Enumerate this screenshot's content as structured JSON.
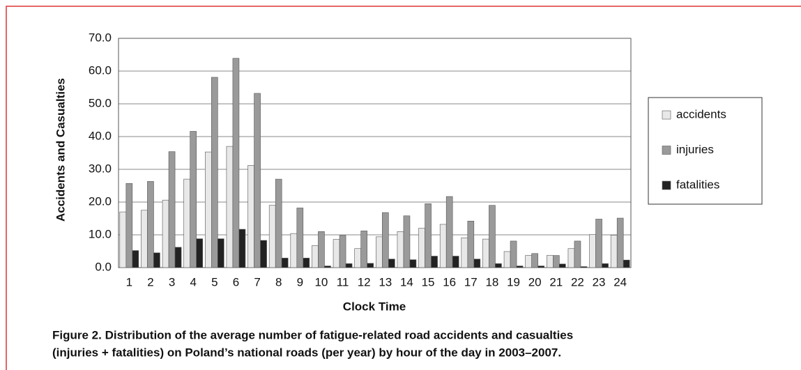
{
  "chart_data": {
    "type": "bar",
    "y_label": "Accidents and Casualties",
    "x_label": "Clock Time",
    "caption": [
      "Figure 2. Distribution of the average number of fatigue-related road accidents and casualties",
      "(injuries + fatalities) on Poland’s national roads (per year) by hour of the day in 2003–2007."
    ],
    "categories": [
      "1",
      "2",
      "3",
      "4",
      "5",
      "6",
      "7",
      "8",
      "9",
      "10",
      "11",
      "12",
      "13",
      "14",
      "15",
      "16",
      "17",
      "18",
      "19",
      "20",
      "21",
      "22",
      "23",
      "24"
    ],
    "series": [
      {
        "name": "accidents",
        "color": "#e8e8e8",
        "values": [
          17,
          17.5,
          20.6,
          27,
          35.3,
          37,
          31.2,
          19,
          10.4,
          6.7,
          8.6,
          5.8,
          9.4,
          11,
          12,
          13.2,
          9.1,
          8.7,
          4.9,
          3.7,
          3.7,
          5.8,
          10.1,
          9.9
        ]
      },
      {
        "name": "injuries",
        "color": "#9a9a9a",
        "values": [
          25.7,
          26.3,
          35.4,
          41.6,
          58.1,
          63.9,
          53.2,
          27,
          18.2,
          11,
          9.8,
          11.2,
          16.8,
          15.8,
          19.5,
          21.7,
          14.2,
          19,
          8.1,
          4.3,
          3.7,
          8.1,
          14.8,
          15.1
        ]
      },
      {
        "name": "fatalities",
        "color": "#222222",
        "values": [
          5.2,
          4.5,
          6.2,
          8.8,
          8.8,
          11.7,
          8.3,
          2.9,
          2.9,
          0.5,
          1.2,
          1.3,
          2.6,
          2.4,
          3.5,
          3.5,
          2.6,
          1.2,
          0.5,
          0.5,
          1.1,
          0.3,
          1.2,
          2.3
        ]
      }
    ],
    "ylim": [
      0,
      70
    ],
    "yticks": [
      {
        "value": 0,
        "label": "0.0"
      },
      {
        "value": 10,
        "label": "10.0"
      },
      {
        "value": 20,
        "label": "20.0"
      },
      {
        "value": 30,
        "label": "30.0"
      },
      {
        "value": 40,
        "label": "40.0"
      },
      {
        "value": 50,
        "label": "50.0"
      },
      {
        "value": 60,
        "label": "60.0"
      },
      {
        "value": 70,
        "label": "70.0"
      }
    ],
    "grid": true,
    "legend": "right"
  }
}
